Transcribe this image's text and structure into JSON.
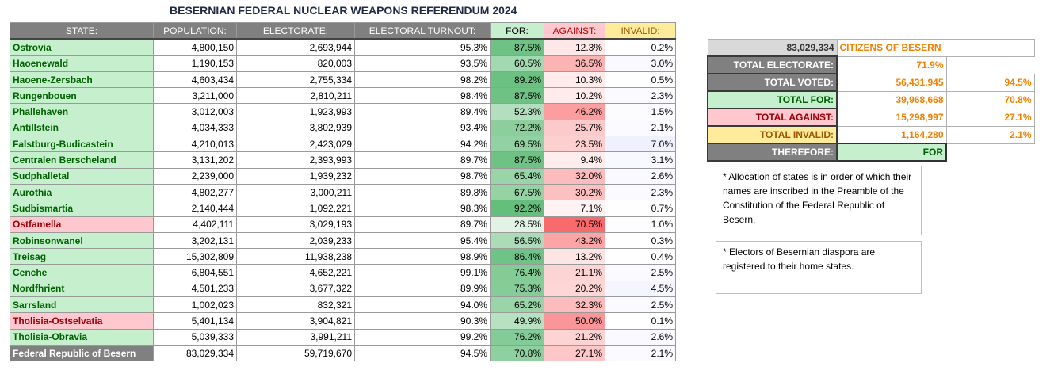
{
  "title": "BESERNIAN FEDERAL NUCLEAR WEAPONS REFERENDUM 2024",
  "colors": {
    "header_gray": "#808080",
    "for_green": "#c6efce",
    "against_red": "#ffc7ce",
    "invalid_yellow": "#ffeb9c",
    "dark_green_text": "#006100",
    "dark_red_text": "#9c0006",
    "orange_text": "#f08000"
  },
  "headers": [
    "STATE:",
    "POPULATION:",
    "ELECTORATE:",
    "ELECTORAL TURNOUT:",
    "FOR:",
    "AGAINST:",
    "INVALID:"
  ],
  "rows": [
    {
      "state": "Ostrovia",
      "population": "4,800,150",
      "electorate": "2,693,944",
      "turnout": "95.3%",
      "for": "87.5%",
      "against": "12.3%",
      "invalid": "0.2%",
      "against_majority": false
    },
    {
      "state": "Haoenewald",
      "population": "1,190,153",
      "electorate": "820,003",
      "turnout": "93.5%",
      "for": "60.5%",
      "against": "36.5%",
      "invalid": "3.0%",
      "against_majority": false
    },
    {
      "state": "Haoene-Zersbach",
      "population": "4,603,434",
      "electorate": "2,755,334",
      "turnout": "98.2%",
      "for": "89.2%",
      "against": "10.3%",
      "invalid": "0.5%",
      "against_majority": false
    },
    {
      "state": "Rungenbouen",
      "population": "3,211,000",
      "electorate": "2,810,211",
      "turnout": "98.4%",
      "for": "87.5%",
      "against": "10.2%",
      "invalid": "2.3%",
      "against_majority": false
    },
    {
      "state": "Phallehaven",
      "population": "3,012,003",
      "electorate": "1,923,993",
      "turnout": "89.4%",
      "for": "52.3%",
      "against": "46.2%",
      "invalid": "1.5%",
      "against_majority": false
    },
    {
      "state": "Antillstein",
      "population": "4,034,333",
      "electorate": "3,802,939",
      "turnout": "93.4%",
      "for": "72.2%",
      "against": "25.7%",
      "invalid": "2.1%",
      "against_majority": false
    },
    {
      "state": "Falstburg-Budicastein",
      "population": "4,210,013",
      "electorate": "2,423,029",
      "turnout": "94.2%",
      "for": "69.5%",
      "against": "23.5%",
      "invalid": "7.0%",
      "against_majority": false
    },
    {
      "state": "Centralen Berscheland",
      "population": "3,131,202",
      "electorate": "2,393,993",
      "turnout": "89.7%",
      "for": "87.5%",
      "against": "9.4%",
      "invalid": "3.1%",
      "against_majority": false
    },
    {
      "state": "Sudphalletal",
      "population": "2,239,000",
      "electorate": "1,939,232",
      "turnout": "98.7%",
      "for": "65.4%",
      "against": "32.0%",
      "invalid": "2.6%",
      "against_majority": false
    },
    {
      "state": "Aurothia",
      "population": "4,802,277",
      "electorate": "3,000,211",
      "turnout": "89.8%",
      "for": "67.5%",
      "against": "30.2%",
      "invalid": "2.3%",
      "against_majority": false
    },
    {
      "state": "Sudbismartia",
      "population": "2,140,444",
      "electorate": "1,092,221",
      "turnout": "98.3%",
      "for": "92.2%",
      "against": "7.1%",
      "invalid": "0.7%",
      "against_majority": false
    },
    {
      "state": "Ostfamella",
      "population": "4,402,111",
      "electorate": "3,029,193",
      "turnout": "89.7%",
      "for": "28.5%",
      "against": "70.5%",
      "invalid": "1.0%",
      "against_majority": true
    },
    {
      "state": "Robinsonwanel",
      "population": "3,202,131",
      "electorate": "2,039,233",
      "turnout": "95.4%",
      "for": "56.5%",
      "against": "43.2%",
      "invalid": "0.3%",
      "against_majority": false
    },
    {
      "state": "Treisag",
      "population": "15,302,809",
      "electorate": "11,938,238",
      "turnout": "98.9%",
      "for": "86.4%",
      "against": "13.2%",
      "invalid": "0.4%",
      "against_majority": false
    },
    {
      "state": "Cenche",
      "population": "6,804,551",
      "electorate": "4,652,221",
      "turnout": "99.1%",
      "for": "76.4%",
      "against": "21.1%",
      "invalid": "2.5%",
      "against_majority": false
    },
    {
      "state": "Nordfhrient",
      "population": "4,501,233",
      "electorate": "3,677,322",
      "turnout": "89.9%",
      "for": "75.3%",
      "against": "20.2%",
      "invalid": "4.5%",
      "against_majority": false
    },
    {
      "state": "Sarrsland",
      "population": "1,002,023",
      "electorate": "832,321",
      "turnout": "94.0%",
      "for": "65.2%",
      "against": "32.3%",
      "invalid": "2.5%",
      "against_majority": false
    },
    {
      "state": "Tholisia-Ostselvatia",
      "population": "5,401,134",
      "electorate": "3,904,821",
      "turnout": "90.3%",
      "for": "49.9%",
      "against": "50.0%",
      "invalid": "0.1%",
      "against_majority": true
    },
    {
      "state": "Tholisia-Obravia",
      "population": "5,039,333",
      "electorate": "3,991,211",
      "turnout": "99.2%",
      "for": "76.2%",
      "against": "21.2%",
      "invalid": "2.6%",
      "against_majority": false
    }
  ],
  "total": {
    "state": "Federal Republic of Besern",
    "population": "83,029,334",
    "electorate": "59,719,670",
    "turnout": "94.5%",
    "for": "70.8%",
    "against": "27.1%",
    "invalid": "2.1%"
  },
  "summary": {
    "citizens_value": "83,029,334",
    "citizens_label": "CITIZENS OF BESERN",
    "rows": [
      {
        "label": "TOTAL ELECTORATE:",
        "value": "71.9%",
        "pct": "",
        "bg": "#ffffff",
        "color": "#f08000",
        "labelbg": "#808080",
        "labelcolor": "#ffffff"
      },
      {
        "label": "TOTAL VOTED:",
        "value": "56,431,945",
        "pct": "94.5%",
        "bg": "#ffffff",
        "color": "#f08000",
        "labelbg": "#808080",
        "labelcolor": "#ffffff"
      },
      {
        "label": "TOTAL FOR:",
        "value": "39,968,668",
        "pct": "70.8%",
        "bg": "#ffffff",
        "color": "#f08000",
        "labelbg": "#c6efce",
        "labelcolor": "#006100"
      },
      {
        "label": "TOTAL AGAINST:",
        "value": "15,298,997",
        "pct": "27.1%",
        "bg": "#ffffff",
        "color": "#f08000",
        "labelbg": "#ffc7ce",
        "labelcolor": "#9c0006"
      },
      {
        "label": "TOTAL INVALID:",
        "value": "1,164,280",
        "pct": "2.1%",
        "bg": "#ffffff",
        "color": "#f08000",
        "labelbg": "#ffeb9c",
        "labelcolor": "#9c5700"
      }
    ],
    "therefore_label": "THEREFORE:",
    "therefore_value": "FOR"
  },
  "notes": [
    "* Allocation of states is in order of which their names are inscribed in the Preamble of the Constitution of the Federal Republic of Besern.",
    "* Electors of Besernian diaspora are registered to their home states."
  ]
}
